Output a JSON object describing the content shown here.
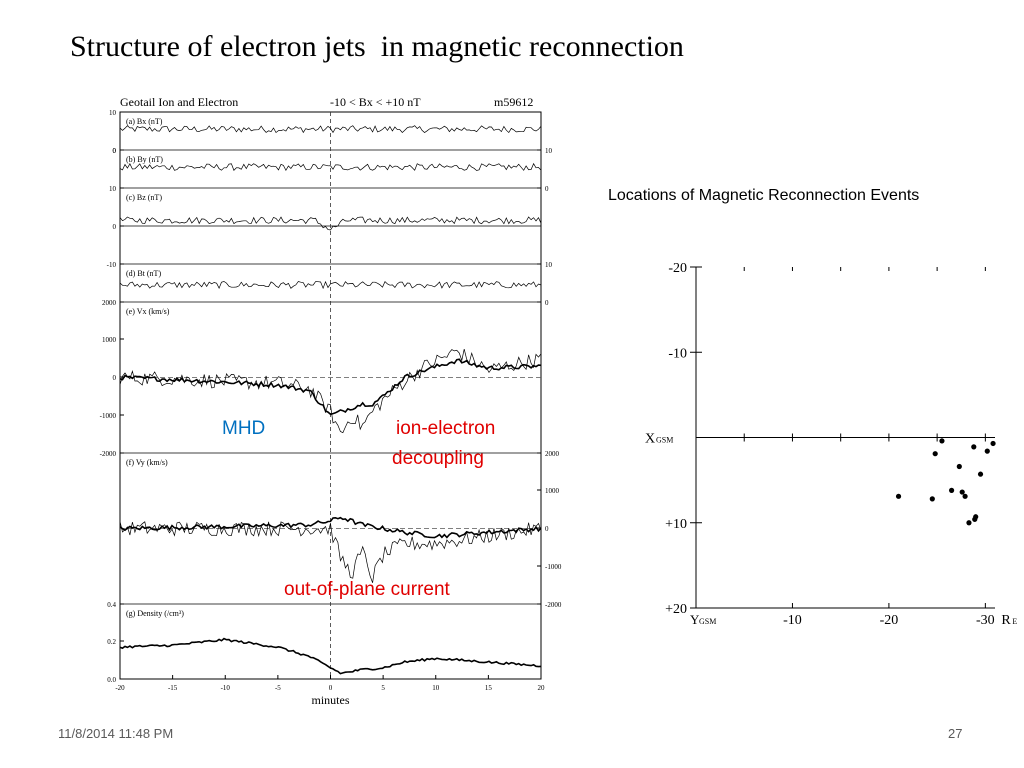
{
  "slide": {
    "title": "Structure of electron jets  in magnetic reconnection",
    "footer_date": "11/8/2014 11:48 PM",
    "page_number": "27",
    "annotations": {
      "mhd": "MHD",
      "ion_electron_1": "ion-electron",
      "ion_electron_2": "decoupling",
      "out_of_plane": "out-of-plane current"
    },
    "colors": {
      "mhd": "#0070c0",
      "annotation_red": "#e00000",
      "footer": "#595959"
    }
  },
  "chart_data": [
    {
      "type": "line",
      "header_left": "Geotail   Ion and Electron",
      "header_mid": "-10 < Bx < +10 nT",
      "header_right": "m59612",
      "xlabel": "minutes",
      "x_ticks": [
        "-20",
        "-15",
        "-10",
        "-5",
        "0",
        "5",
        "10",
        "15",
        "20"
      ],
      "xlim": [
        -20,
        20
      ],
      "dashed_vertical_at": 0,
      "panels": [
        {
          "label": "(a) Bx (nT)",
          "left_ticks": [
            "10",
            "0"
          ],
          "right_ticks": [],
          "ylim": [
            0,
            10
          ],
          "level": 0.55,
          "dip": 0
        },
        {
          "label": "(b) By (nT)",
          "left_ticks": [
            "0"
          ],
          "right_ticks": [
            "10",
            "0"
          ],
          "ylim": [
            0,
            10
          ],
          "level": 0.55,
          "dip": 0
        },
        {
          "label": "(c) Bz (nT)",
          "left_ticks": [
            "10",
            "0"
          ],
          "right_ticks": [],
          "ylim": [
            0,
            10
          ],
          "level": 0.15,
          "dip": 0.25
        },
        {
          "label": "(d) Bt (nT)",
          "left_ticks": [
            "-10"
          ],
          "right_ticks": [
            "10",
            "0"
          ],
          "ylim": [
            0,
            10
          ],
          "level": 0.45,
          "dip": 0
        },
        {
          "label": "(e) Vx (km/s)",
          "left_ticks": [
            "2000",
            "1000",
            "0",
            "-1000",
            "-2000"
          ],
          "right_ticks": [],
          "ylim": [
            -2000,
            2000
          ],
          "zero_dashed": true,
          "series": [
            {
              "x": [
                -20,
                -15,
                -10,
                -5,
                -2,
                0,
                1,
                2,
                3,
                4,
                5,
                7,
                9,
                12,
                15,
                20
              ],
              "y": [
                0,
                -50,
                -120,
                -200,
                -350,
                -1000,
                -900,
                -800,
                -700,
                -700,
                -500,
                0,
                200,
                450,
                250,
                300
              ]
            },
            {
              "x": [
                -20,
                -15,
                -10,
                -5,
                -2,
                0,
                1,
                2,
                3,
                4,
                5,
                7,
                9,
                12,
                15,
                20
              ],
              "y": [
                0,
                -30,
                -100,
                -150,
                -300,
                -900,
                -1500,
                -1000,
                -1300,
                -900,
                -600,
                -100,
                300,
                700,
                200,
                500
              ]
            }
          ]
        },
        {
          "label": "(f) Vy (km/s)",
          "left_ticks": [],
          "right_ticks": [
            "2000",
            "1000",
            "0",
            "-1000",
            "-2000"
          ],
          "ylim": [
            -2000,
            2000
          ],
          "zero_dashed": true,
          "series": [
            {
              "x": [
                -20,
                -10,
                -2,
                0,
                1,
                3,
                5,
                7,
                10,
                15,
                20
              ],
              "y": [
                0,
                50,
                100,
                200,
                300,
                100,
                0,
                -100,
                -200,
                -100,
                0
              ]
            },
            {
              "x": [
                -20,
                -10,
                -2,
                0,
                1,
                2,
                3,
                4,
                5,
                7,
                10,
                15,
                20
              ],
              "y": [
                0,
                0,
                0,
                0,
                -800,
                -1200,
                -600,
                -1300,
                -700,
                -400,
                -400,
                -200,
                0
              ]
            }
          ]
        },
        {
          "label": "(g) Density (/cm³)",
          "left_ticks": [
            "0.4",
            "0.2",
            "0.0"
          ],
          "right_ticks": [],
          "ylim": [
            0,
            0.4
          ],
          "series": [
            {
              "x": [
                -20,
                -15,
                -10,
                -5,
                -2,
                0,
                1,
                2,
                3,
                5,
                7,
                10,
                15,
                20
              ],
              "y": [
                0.17,
                0.18,
                0.21,
                0.17,
                0.12,
                0.06,
                0.03,
                0.04,
                0.05,
                0.06,
                0.09,
                0.11,
                0.09,
                0.07
              ]
            }
          ]
        }
      ]
    },
    {
      "type": "scatter",
      "title": "Locations of Magnetic Reconnection Events",
      "xlabel": "Y",
      "xlabel_sub": "GSM",
      "ylabel": "X",
      "ylabel_sub": "GSM",
      "x_ticks": [
        "-10",
        "-20",
        "-30"
      ],
      "x_unit": "R",
      "x_unit_sub": "E",
      "y_ticks": [
        "-20",
        "-10",
        "+10",
        "+20"
      ],
      "xlim": [
        0,
        -31
      ],
      "ylim": [
        -20,
        20
      ],
      "x": [
        -21.0,
        -24.5,
        -24.8,
        -25.5,
        -26.5,
        -27.3,
        -27.6,
        -27.9,
        -28.3,
        -28.8,
        -28.9,
        -29.0,
        -29.5,
        -30.2,
        -30.8
      ],
      "y": [
        6.9,
        7.2,
        1.9,
        0.4,
        6.2,
        3.4,
        6.4,
        6.9,
        10.0,
        1.1,
        9.6,
        9.3,
        4.3,
        1.6,
        0.7
      ]
    }
  ]
}
